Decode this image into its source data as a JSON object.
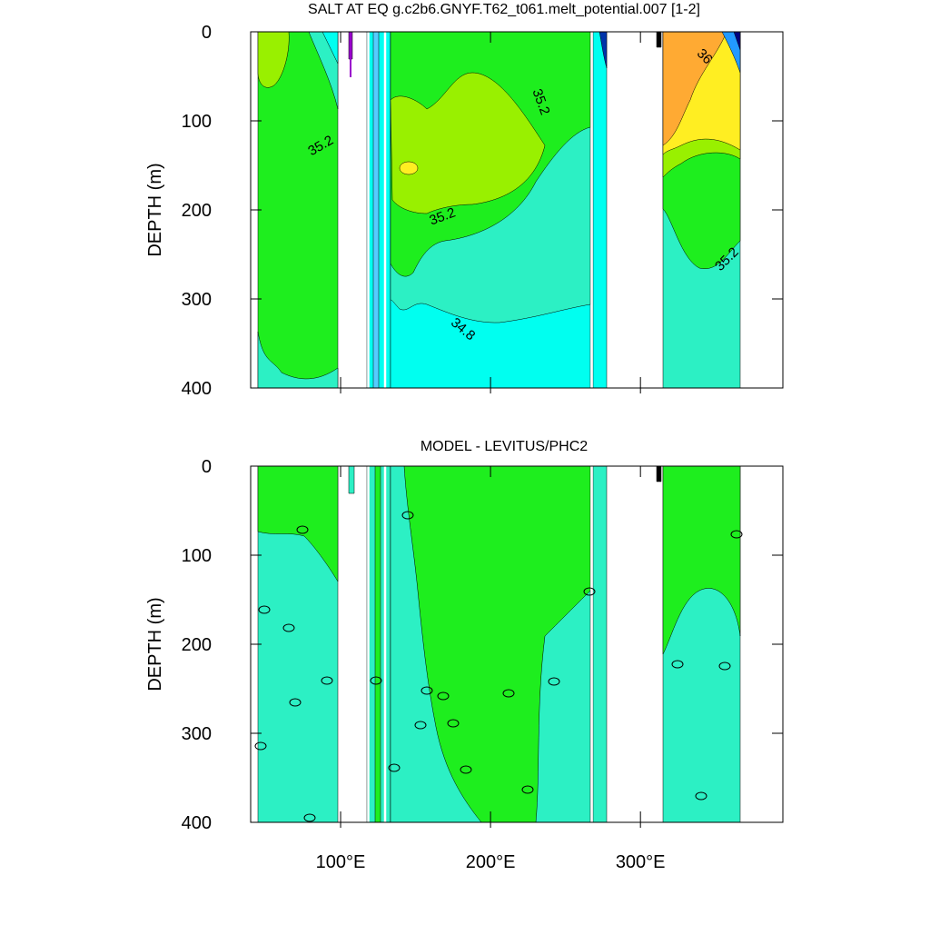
{
  "chart_data": [
    {
      "type": "contour",
      "title": "SALT AT EQ g.c2b6.GNYF.T62_t061.melt_potential.007 [1-2]",
      "ylabel": "DEPTH (m)",
      "ylim": [
        0,
        400
      ],
      "yticks": [
        0,
        100,
        200,
        300,
        400
      ],
      "xlim": [
        40,
        395
      ],
      "contour_labels": [
        35.2,
        35.2,
        35.2,
        35.2,
        36,
        34.8
      ]
    },
    {
      "type": "contour",
      "title": "MODEL - LEVITUS/PHC2",
      "ylabel": "DEPTH (m)",
      "ylim": [
        0,
        400
      ],
      "yticks": [
        0,
        100,
        200,
        300,
        400
      ],
      "xlim": [
        40,
        395
      ],
      "xticks": [
        {
          "value": 100,
          "label": "100°E"
        },
        {
          "value": 200,
          "label": "200°E"
        },
        {
          "value": 300,
          "label": "300°E"
        }
      ]
    }
  ]
}
